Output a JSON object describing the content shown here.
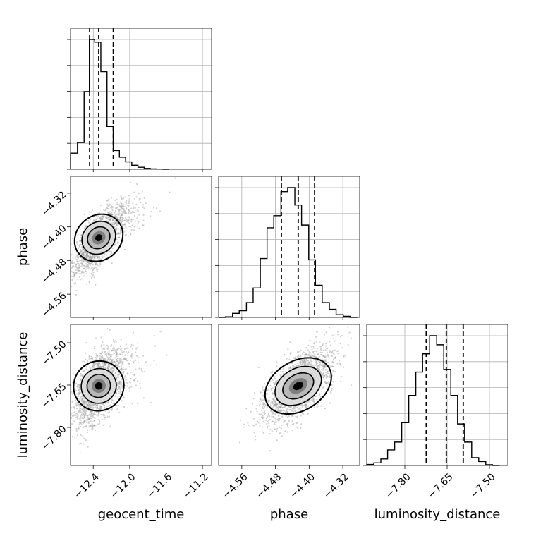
{
  "chart_data": {
    "type": "corner",
    "parameters": [
      "geocent_time",
      "phase",
      "luminosity_distance"
    ],
    "axis_labels": {
      "x": [
        "geocent_time",
        "phase",
        "luminosity_distance"
      ],
      "y": [
        "phase",
        "luminosity_distance"
      ]
    },
    "ranges": {
      "geocent_time": [
        -12.65,
        -11.1
      ],
      "phase": [
        -4.615,
        -4.28
      ],
      "luminosity_distance": [
        -7.935,
        -7.435
      ]
    },
    "ticks": {
      "geocent_time": {
        "values": [
          -12.4,
          -12.0,
          -11.6,
          -11.2
        ],
        "labels": [
          "−12.4",
          "−12.0",
          "−11.6",
          "−11.2"
        ]
      },
      "phase": {
        "values": [
          -4.56,
          -4.48,
          -4.4,
          -4.32
        ],
        "labels": [
          "−4.56",
          "−4.48",
          "−4.40",
          "−4.32"
        ]
      },
      "luminosity_distance": {
        "values": [
          -7.8,
          -7.65,
          -7.5
        ],
        "labels": [
          "−7.80",
          "−7.65",
          "−7.50"
        ]
      }
    },
    "quantiles": {
      "geocent_time": [
        -12.44,
        -12.34,
        -12.18
      ],
      "phase": [
        -4.466,
        -4.426,
        -4.387
      ],
      "luminosity_distance": [
        -7.724,
        -7.653,
        -7.593
      ]
    },
    "histograms": {
      "geocent_time": {
        "edges": [
          -12.65,
          -12.574,
          -12.501,
          -12.443,
          -12.385,
          -12.317,
          -12.249,
          -12.181,
          -12.113,
          -12.045,
          -11.977,
          -11.909,
          -11.841,
          -11.773,
          -11.705,
          -11.637,
          -11.569
        ],
        "counts": [
          0.12,
          0.2,
          0.58,
          0.97,
          0.95,
          0.73,
          0.32,
          0.14,
          0.09,
          0.055,
          0.03,
          0.015,
          0.006,
          0.003,
          0.001,
          0.0
        ]
      },
      "phase": {
        "edges": [
          -4.615,
          -4.599,
          -4.582,
          -4.566,
          -4.549,
          -4.533,
          -4.516,
          -4.5,
          -4.484,
          -4.467,
          -4.451,
          -4.434,
          -4.418,
          -4.401,
          -4.385,
          -4.369,
          -4.352,
          -4.336,
          -4.319,
          -4.303,
          -4.286
        ],
        "counts": [
          0.0,
          0.004,
          0.03,
          0.05,
          0.11,
          0.22,
          0.44,
          0.67,
          0.76,
          0.94,
          0.97,
          0.84,
          0.69,
          0.43,
          0.24,
          0.11,
          0.06,
          0.02,
          0.008,
          0.0
        ]
      },
      "luminosity_distance": {
        "edges": [
          -7.935,
          -7.91,
          -7.885,
          -7.861,
          -7.836,
          -7.811,
          -7.786,
          -7.761,
          -7.737,
          -7.712,
          -7.687,
          -7.662,
          -7.637,
          -7.613,
          -7.588,
          -7.563,
          -7.538,
          -7.513,
          -7.489,
          -7.464
        ],
        "counts": [
          0.008,
          0.02,
          0.05,
          0.12,
          0.18,
          0.33,
          0.54,
          0.72,
          0.86,
          1.0,
          0.93,
          0.74,
          0.54,
          0.32,
          0.18,
          0.06,
          0.03,
          0.006,
          0.0
        ]
      }
    },
    "hist_grid": "on",
    "scatter_points": "grey",
    "contour_color": "#000000",
    "density_levels": [
      "#000000",
      "#555555",
      "#8a8a8a",
      "#bdbdbd"
    ]
  }
}
